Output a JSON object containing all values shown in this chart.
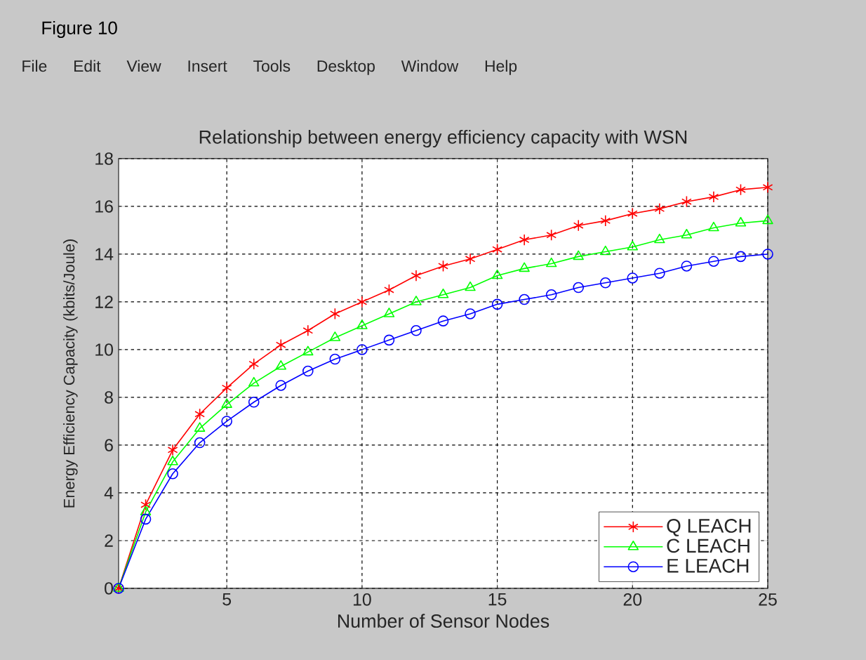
{
  "chart_data": {
    "type": "line",
    "title": "Relationship between energy efficiency capacity with WSN",
    "xlabel": "Number of Sensor Nodes",
    "ylabel": "Energy Efficiency Capacity (kbits/Joule)",
    "x": [
      1,
      2,
      3,
      4,
      5,
      6,
      7,
      8,
      9,
      10,
      11,
      12,
      13,
      14,
      15,
      16,
      17,
      18,
      19,
      20,
      21,
      22,
      23,
      24,
      25
    ],
    "series": [
      {
        "name": "Q LEACH",
        "color": "#ff0000",
        "marker": "cross",
        "values": [
          0,
          3.5,
          5.8,
          7.3,
          8.4,
          9.4,
          10.2,
          10.8,
          11.5,
          12.0,
          12.5,
          13.1,
          13.5,
          13.8,
          14.2,
          14.6,
          14.8,
          15.2,
          15.4,
          15.7,
          15.9,
          16.2,
          16.4,
          16.7,
          16.8
        ]
      },
      {
        "name": "C LEACH",
        "color": "#00ff00",
        "marker": "triangle",
        "values": [
          0,
          3.2,
          5.3,
          6.7,
          7.7,
          8.6,
          9.3,
          9.9,
          10.5,
          11.0,
          11.5,
          12.0,
          12.3,
          12.6,
          13.1,
          13.4,
          13.6,
          13.9,
          14.1,
          14.3,
          14.6,
          14.8,
          15.1,
          15.3,
          15.4
        ]
      },
      {
        "name": "E LEACH",
        "color": "#0000ff",
        "marker": "circle",
        "values": [
          0,
          2.9,
          4.8,
          6.1,
          7.0,
          7.8,
          8.5,
          9.1,
          9.6,
          10.0,
          10.4,
          10.8,
          11.2,
          11.5,
          11.9,
          12.1,
          12.3,
          12.6,
          12.8,
          13.0,
          13.2,
          13.5,
          13.7,
          13.9,
          14.0
        ]
      }
    ],
    "xlim": [
      1,
      25
    ],
    "xticks": [
      5,
      10,
      15,
      20,
      25
    ],
    "ylim": [
      0,
      18
    ],
    "yticks": [
      0,
      2,
      4,
      6,
      8,
      10,
      12,
      14,
      16,
      18
    ],
    "grid": true,
    "legend": "bottom right",
    "line_style": "solid",
    "annotations": [
      "Figure 10",
      "File",
      "Edit",
      "View",
      "Insert",
      "Tools",
      "Desktop",
      "Window",
      "Help"
    ]
  }
}
